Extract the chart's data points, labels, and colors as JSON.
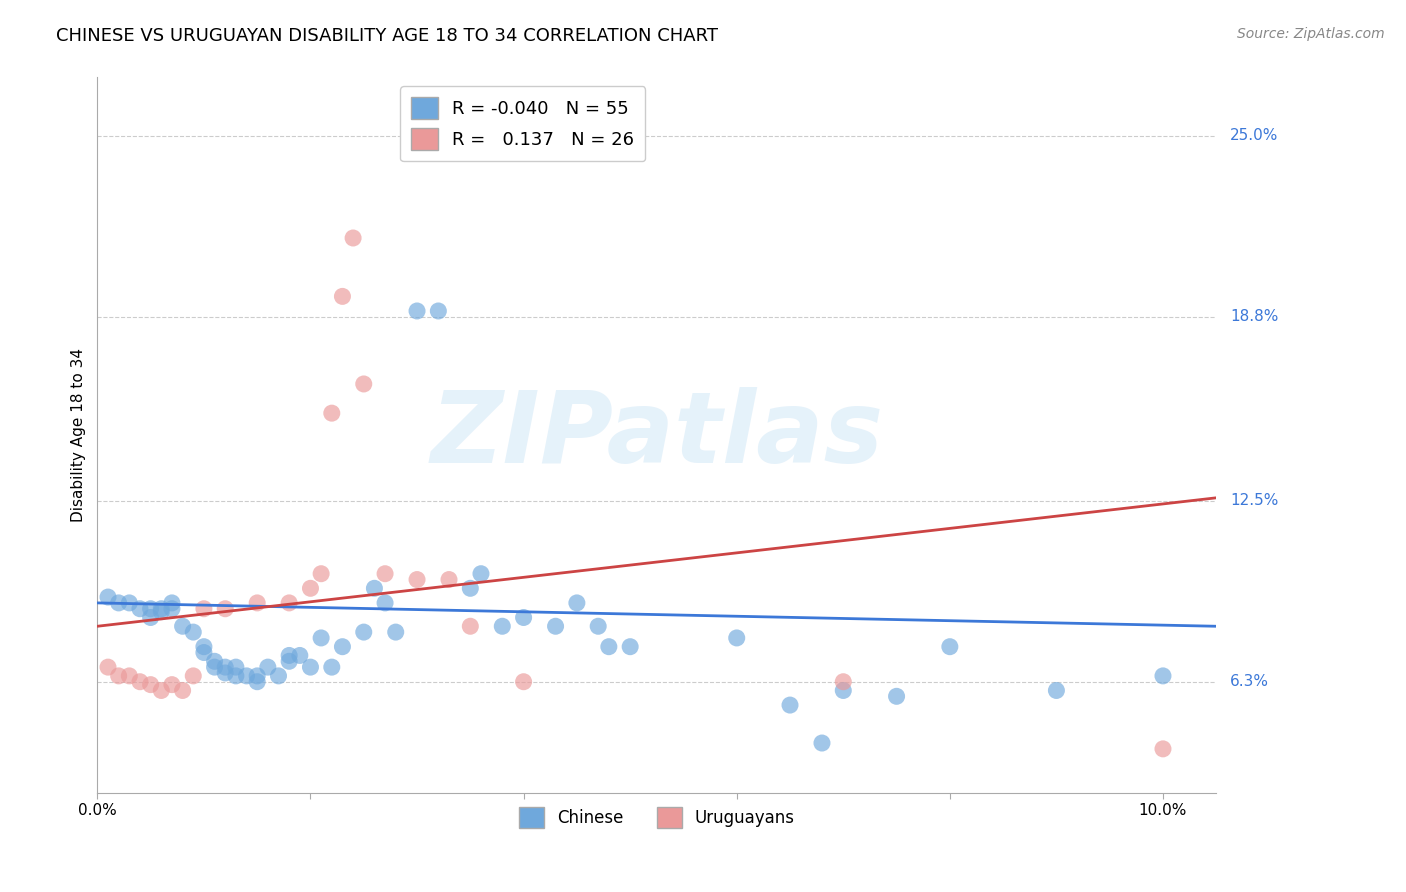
{
  "title": "CHINESE VS URUGUAYAN DISABILITY AGE 18 TO 34 CORRELATION CHART",
  "source": "Source: ZipAtlas.com",
  "ylabel": "Disability Age 18 to 34",
  "right_yticks": [
    6.3,
    12.5,
    18.8,
    25.0
  ],
  "legend_blue_r": "-0.040",
  "legend_blue_n": "55",
  "legend_pink_r": "0.137",
  "legend_pink_n": "26",
  "blue_color": "#6fa8dc",
  "pink_color": "#ea9999",
  "blue_line_color": "#3c78d8",
  "pink_line_color": "#cc4444",
  "watermark_text": "ZIPatlas",
  "blue_points": [
    [
      0.001,
      0.092
    ],
    [
      0.002,
      0.09
    ],
    [
      0.003,
      0.09
    ],
    [
      0.004,
      0.088
    ],
    [
      0.005,
      0.088
    ],
    [
      0.005,
      0.085
    ],
    [
      0.006,
      0.088
    ],
    [
      0.006,
      0.087
    ],
    [
      0.007,
      0.09
    ],
    [
      0.007,
      0.088
    ],
    [
      0.008,
      0.082
    ],
    [
      0.009,
      0.08
    ],
    [
      0.01,
      0.075
    ],
    [
      0.01,
      0.073
    ],
    [
      0.011,
      0.07
    ],
    [
      0.011,
      0.068
    ],
    [
      0.012,
      0.068
    ],
    [
      0.012,
      0.066
    ],
    [
      0.013,
      0.068
    ],
    [
      0.013,
      0.065
    ],
    [
      0.014,
      0.065
    ],
    [
      0.015,
      0.065
    ],
    [
      0.015,
      0.063
    ],
    [
      0.016,
      0.068
    ],
    [
      0.017,
      0.065
    ],
    [
      0.018,
      0.072
    ],
    [
      0.018,
      0.07
    ],
    [
      0.019,
      0.072
    ],
    [
      0.02,
      0.068
    ],
    [
      0.021,
      0.078
    ],
    [
      0.022,
      0.068
    ],
    [
      0.023,
      0.075
    ],
    [
      0.025,
      0.08
    ],
    [
      0.026,
      0.095
    ],
    [
      0.027,
      0.09
    ],
    [
      0.028,
      0.08
    ],
    [
      0.03,
      0.19
    ],
    [
      0.032,
      0.19
    ],
    [
      0.035,
      0.095
    ],
    [
      0.036,
      0.1
    ],
    [
      0.038,
      0.082
    ],
    [
      0.04,
      0.085
    ],
    [
      0.043,
      0.082
    ],
    [
      0.045,
      0.09
    ],
    [
      0.047,
      0.082
    ],
    [
      0.048,
      0.075
    ],
    [
      0.05,
      0.075
    ],
    [
      0.06,
      0.078
    ],
    [
      0.065,
      0.055
    ],
    [
      0.068,
      0.042
    ],
    [
      0.07,
      0.06
    ],
    [
      0.075,
      0.058
    ],
    [
      0.08,
      0.075
    ],
    [
      0.09,
      0.06
    ],
    [
      0.1,
      0.065
    ]
  ],
  "pink_points": [
    [
      0.001,
      0.068
    ],
    [
      0.002,
      0.065
    ],
    [
      0.003,
      0.065
    ],
    [
      0.004,
      0.063
    ],
    [
      0.005,
      0.062
    ],
    [
      0.006,
      0.06
    ],
    [
      0.007,
      0.062
    ],
    [
      0.008,
      0.06
    ],
    [
      0.009,
      0.065
    ],
    [
      0.01,
      0.088
    ],
    [
      0.012,
      0.088
    ],
    [
      0.015,
      0.09
    ],
    [
      0.018,
      0.09
    ],
    [
      0.02,
      0.095
    ],
    [
      0.021,
      0.1
    ],
    [
      0.022,
      0.155
    ],
    [
      0.023,
      0.195
    ],
    [
      0.024,
      0.215
    ],
    [
      0.025,
      0.165
    ],
    [
      0.027,
      0.1
    ],
    [
      0.03,
      0.098
    ],
    [
      0.033,
      0.098
    ],
    [
      0.035,
      0.082
    ],
    [
      0.04,
      0.063
    ],
    [
      0.07,
      0.063
    ],
    [
      0.1,
      0.04
    ]
  ],
  "xlim": [
    0.0,
    0.105
  ],
  "ylim": [
    0.025,
    0.27
  ],
  "title_fontsize": 13,
  "axis_label_fontsize": 11,
  "tick_fontsize": 11,
  "source_fontsize": 10
}
